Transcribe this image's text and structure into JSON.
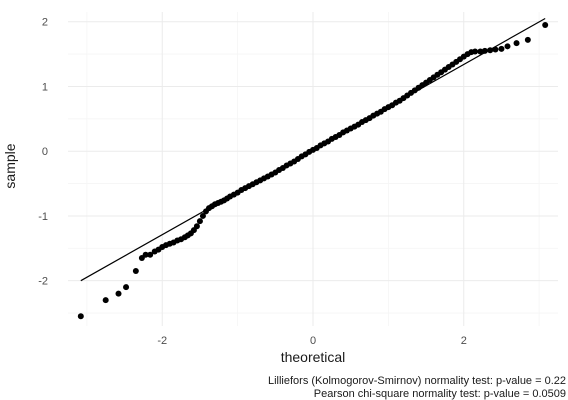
{
  "chart_data": {
    "type": "scatter",
    "title": "",
    "xlabel": "theoretical",
    "ylabel": "sample",
    "xlim": [
      -3.25,
      3.25
    ],
    "ylim": [
      -2.7,
      2.15
    ],
    "x_ticks": [
      -2,
      0,
      2
    ],
    "x_tick_labels": [
      "-2",
      "0",
      "2"
    ],
    "y_ticks": [
      -2,
      -1,
      0,
      1,
      2
    ],
    "y_tick_labels": [
      "-2",
      "-1",
      "0",
      "1",
      "2"
    ],
    "grid": true,
    "legend": "none",
    "reference_line": {
      "x": [
        -3.08,
        3.08
      ],
      "y": [
        -2.0,
        2.05
      ]
    },
    "series": [
      {
        "points": {
          "x": [
            -3.08,
            -2.75,
            -2.58,
            -2.48,
            -2.35,
            -2.27,
            -2.22,
            -2.16,
            -2.1,
            -2.05,
            -2.0,
            -1.95,
            -1.9,
            -1.85,
            -1.8,
            -1.75,
            -1.7,
            -1.66,
            -1.62,
            -1.58,
            -1.54,
            -1.5,
            -1.46,
            -1.42,
            -1.38,
            -1.34,
            -1.3,
            -1.26,
            -1.22,
            -1.18,
            -1.14,
            -1.1,
            -1.05,
            -1.0,
            -0.95,
            -0.9,
            -0.85,
            -0.8,
            -0.75,
            -0.7,
            -0.65,
            -0.6,
            -0.55,
            -0.5,
            -0.45,
            -0.4,
            -0.35,
            -0.3,
            -0.25,
            -0.2,
            -0.15,
            -0.1,
            -0.05,
            0.0,
            0.05,
            0.1,
            0.15,
            0.2,
            0.25,
            0.3,
            0.35,
            0.4,
            0.45,
            0.5,
            0.55,
            0.6,
            0.65,
            0.7,
            0.75,
            0.8,
            0.85,
            0.9,
            0.95,
            1.0,
            1.05,
            1.1,
            1.15,
            1.2,
            1.25,
            1.3,
            1.35,
            1.4,
            1.45,
            1.5,
            1.55,
            1.6,
            1.65,
            1.7,
            1.75,
            1.8,
            1.85,
            1.9,
            1.95,
            2.0,
            2.05,
            2.1,
            2.15,
            2.22,
            2.28,
            2.35,
            2.42,
            2.5,
            2.58,
            2.7,
            2.85,
            3.08
          ],
          "y": [
            -2.55,
            -2.3,
            -2.2,
            -2.1,
            -1.85,
            -1.65,
            -1.6,
            -1.6,
            -1.55,
            -1.52,
            -1.48,
            -1.45,
            -1.43,
            -1.41,
            -1.38,
            -1.36,
            -1.33,
            -1.3,
            -1.27,
            -1.22,
            -1.16,
            -1.08,
            -1.0,
            -0.93,
            -0.88,
            -0.85,
            -0.82,
            -0.8,
            -0.78,
            -0.76,
            -0.73,
            -0.7,
            -0.67,
            -0.64,
            -0.6,
            -0.57,
            -0.54,
            -0.51,
            -0.48,
            -0.45,
            -0.42,
            -0.39,
            -0.36,
            -0.33,
            -0.29,
            -0.26,
            -0.22,
            -0.19,
            -0.16,
            -0.12,
            -0.08,
            -0.05,
            -0.01,
            0.02,
            0.05,
            0.09,
            0.12,
            0.15,
            0.19,
            0.22,
            0.25,
            0.29,
            0.32,
            0.35,
            0.38,
            0.41,
            0.45,
            0.48,
            0.51,
            0.55,
            0.58,
            0.61,
            0.65,
            0.68,
            0.71,
            0.75,
            0.78,
            0.82,
            0.86,
            0.9,
            0.94,
            0.98,
            1.02,
            1.06,
            1.1,
            1.14,
            1.18,
            1.22,
            1.26,
            1.3,
            1.34,
            1.38,
            1.42,
            1.46,
            1.5,
            1.53,
            1.54,
            1.54,
            1.55,
            1.56,
            1.57,
            1.58,
            1.62,
            1.67,
            1.72,
            1.95
          ]
        }
      }
    ],
    "caption": [
      "Lilliefors (Kolmogorov-Smirnov) normality test: p-value = 0.22",
      "Pearson chi-square normality test: p-value = 0.0509"
    ]
  }
}
